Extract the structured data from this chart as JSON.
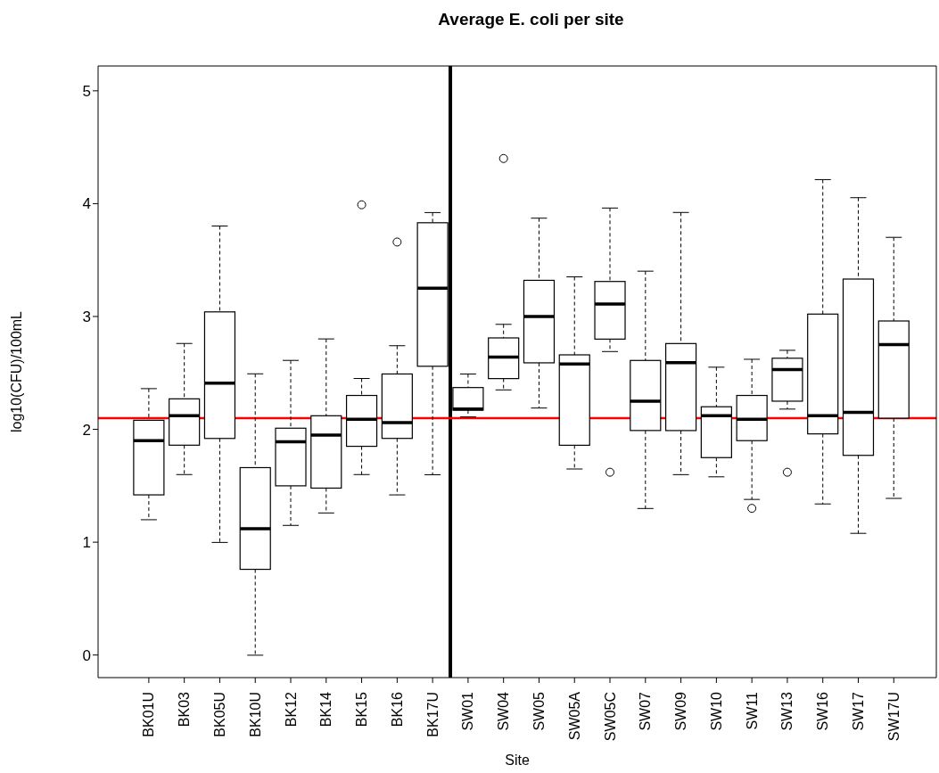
{
  "chart_data": {
    "type": "box",
    "title": "Average E. coli per site",
    "xlabel": "Site",
    "ylabel": "log10(CFU)/100mL",
    "categories": [
      "BK01U",
      "BK03",
      "BK05U",
      "BK10U",
      "BK12",
      "BK14",
      "BK15",
      "BK16",
      "BK17U",
      "SW01",
      "SW04",
      "SW05",
      "SW05A",
      "SW05C",
      "SW07",
      "SW09",
      "SW10",
      "SW11",
      "SW13",
      "SW16",
      "SW17",
      "SW17U"
    ],
    "boxes": [
      {
        "low": 1.2,
        "q1": 1.42,
        "median": 1.9,
        "q3": 2.08,
        "high": 2.36
      },
      {
        "low": 1.6,
        "q1": 1.86,
        "median": 2.12,
        "q3": 2.27,
        "high": 2.76
      },
      {
        "low": 1.0,
        "q1": 1.92,
        "median": 2.41,
        "q3": 3.04,
        "high": 3.8
      },
      {
        "low": 0,
        "q1": 0.76,
        "median": 1.12,
        "q3": 1.66,
        "high": 2.49
      },
      {
        "low": 1.15,
        "q1": 1.5,
        "median": 1.89,
        "q3": 2.01,
        "high": 2.61
      },
      {
        "low": 1.26,
        "q1": 1.48,
        "median": 1.95,
        "q3": 2.12,
        "high": 2.8
      },
      {
        "low": 1.6,
        "q1": 1.85,
        "median": 2.09,
        "q3": 2.3,
        "high": 2.45,
        "outliers": [
          3.99
        ]
      },
      {
        "low": 1.42,
        "q1": 1.92,
        "median": 2.06,
        "q3": 2.49,
        "high": 2.74,
        "outliers": [
          3.66
        ]
      },
      {
        "low": 1.6,
        "q1": 2.56,
        "median": 3.25,
        "q3": 3.83,
        "high": 3.92
      },
      {
        "low": 2.11,
        "q1": 2.17,
        "median": 2.18,
        "q3": 2.37,
        "high": 2.49
      },
      {
        "low": 2.35,
        "q1": 2.45,
        "median": 2.64,
        "q3": 2.81,
        "high": 2.93,
        "outliers": [
          4.4
        ]
      },
      {
        "low": 2.19,
        "q1": 2.59,
        "median": 3.0,
        "q3": 3.32,
        "high": 3.87
      },
      {
        "low": 1.65,
        "q1": 1.86,
        "median": 2.58,
        "q3": 2.66,
        "high": 3.35
      },
      {
        "low": 2.69,
        "q1": 2.8,
        "median": 3.11,
        "q3": 3.31,
        "high": 3.96,
        "outliers": [
          1.62
        ]
      },
      {
        "low": 1.3,
        "q1": 1.99,
        "median": 2.25,
        "q3": 2.61,
        "high": 3.4
      },
      {
        "low": 1.6,
        "q1": 1.99,
        "median": 2.59,
        "q3": 2.76,
        "high": 3.92
      },
      {
        "low": 1.58,
        "q1": 1.75,
        "median": 2.12,
        "q3": 2.2,
        "high": 2.55
      },
      {
        "low": 1.38,
        "q1": 1.9,
        "median": 2.09,
        "q3": 2.3,
        "high": 2.62,
        "outliers": [
          1.3
        ]
      },
      {
        "low": 2.18,
        "q1": 2.25,
        "median": 2.53,
        "q3": 2.63,
        "high": 2.7,
        "outliers": [
          1.62
        ]
      },
      {
        "low": 1.34,
        "q1": 1.96,
        "median": 2.12,
        "q3": 3.02,
        "high": 4.21
      },
      {
        "low": 1.08,
        "q1": 1.77,
        "median": 2.15,
        "q3": 3.33,
        "high": 4.05
      },
      {
        "low": 1.39,
        "q1": 2.1,
        "median": 2.75,
        "q3": 2.96,
        "high": 3.7
      }
    ],
    "ylim": [
      -0.2,
      5.22
    ],
    "yticks": [
      0,
      1,
      2,
      3,
      4,
      5
    ],
    "ref_lines": [
      {
        "axis": "y",
        "value": 2.1,
        "color": "#ff0000"
      }
    ]
  }
}
